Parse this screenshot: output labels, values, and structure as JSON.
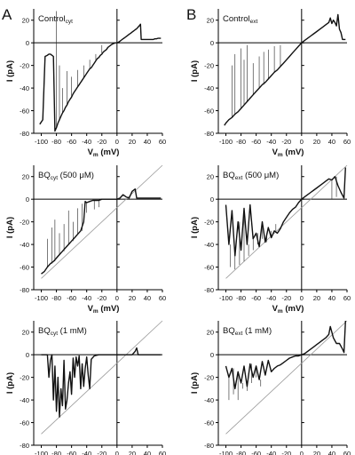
{
  "chart_data": [
    {
      "type": "line",
      "panel": "A",
      "title": "Control",
      "title_sub": "cyt",
      "title_suffix": "",
      "xlabel": "V",
      "xlabel_sub": "m",
      "xlabel_unit": " (mV)",
      "ylabel": "I (pA)",
      "xlim": [
        -110,
        60
      ],
      "ylim": [
        -80,
        30
      ],
      "xticks": [
        -100,
        -80,
        -60,
        -40,
        -20,
        0,
        20,
        40,
        60
      ],
      "yticks": [
        -80,
        -60,
        -40,
        -20,
        0,
        20
      ],
      "series": [
        {
          "x": [
            -102,
            -100,
            -98,
            -95,
            -92,
            -90,
            -88,
            -86,
            -84,
            -82,
            -80,
            -78,
            -76,
            -74,
            -72,
            -70,
            -68,
            -66,
            -64,
            -62,
            -60,
            -58,
            -56,
            -54,
            -52,
            -50,
            -48,
            -46,
            -44,
            -42,
            -40,
            -38,
            -36,
            -34,
            -32,
            -30,
            -28,
            -26,
            -24,
            -22,
            -20,
            -18,
            -16,
            -14,
            -12,
            -10,
            -8,
            -6,
            -4,
            -2,
            0,
            2,
            4,
            6,
            8,
            10,
            12,
            14,
            16,
            18,
            20,
            22,
            24,
            26,
            28,
            30,
            31,
            32,
            34,
            36,
            38,
            40,
            42,
            44,
            46,
            48,
            50,
            52,
            54,
            56,
            58
          ],
          "y": [
            -72,
            -70,
            -68,
            -12,
            -11,
            -10,
            -10,
            -11,
            -12,
            -78,
            -75,
            -71,
            -68,
            -65,
            -62,
            -60,
            -57,
            -55,
            -52,
            -50,
            -48,
            -45,
            -43,
            -41,
            -39,
            -37,
            -35,
            -33,
            -31,
            -29,
            -27,
            -25,
            -23,
            -22,
            -20,
            -18,
            -16,
            -14,
            -13,
            -11,
            -10,
            -8,
            -7,
            -6,
            -4,
            -3,
            -2,
            -1,
            -0.5,
            0,
            0,
            0.5,
            1.5,
            2.5,
            3.5,
            4.5,
            5.5,
            6.5,
            7.5,
            8.5,
            9.5,
            10.5,
            11.5,
            12.5,
            14,
            15.5,
            16.5,
            3,
            3,
            3,
            3,
            3,
            3,
            3,
            3,
            3,
            3.5,
            3.5,
            4,
            4,
            4
          ]
        }
      ],
      "spikes": [
        {
          "x": -80,
          "y": 28
        },
        {
          "x": -76,
          "y": -20
        },
        {
          "x": -72,
          "y": -40
        },
        {
          "x": -66,
          "y": -25
        },
        {
          "x": -60,
          "y": -30
        },
        {
          "x": -52,
          "y": -24
        },
        {
          "x": -44,
          "y": -20
        },
        {
          "x": -36,
          "y": -15
        },
        {
          "x": -28,
          "y": -10
        },
        {
          "x": -20,
          "y": -2
        }
      ]
    },
    {
      "type": "line",
      "panel": "B",
      "title": "Control",
      "title_sub": "ext",
      "title_suffix": "",
      "xlabel": "V",
      "xlabel_sub": "m",
      "xlabel_unit": " (mV)",
      "ylabel": "I (pA)",
      "xlim": [
        -110,
        60
      ],
      "ylim": [
        -80,
        30
      ],
      "xticks": [
        -100,
        -80,
        -60,
        -40,
        -20,
        0,
        20,
        40,
        60
      ],
      "yticks": [
        -80,
        -60,
        -40,
        -20,
        0,
        20
      ],
      "series": [
        {
          "x": [
            -102,
            -100,
            -96,
            -92,
            -88,
            -84,
            -80,
            -76,
            -72,
            -68,
            -64,
            -60,
            -56,
            -52,
            -48,
            -44,
            -40,
            -36,
            -32,
            -28,
            -24,
            -20,
            -16,
            -12,
            -8,
            -4,
            0,
            4,
            8,
            12,
            16,
            20,
            24,
            28,
            32,
            36,
            38,
            40,
            42,
            44,
            46,
            48,
            50,
            52,
            54,
            56,
            58
          ],
          "y": [
            -73,
            -71,
            -68,
            -66,
            -63,
            -61,
            -58,
            -55,
            -52,
            -49,
            -46,
            -43,
            -40,
            -37,
            -35,
            -32,
            -29,
            -26,
            -24,
            -21,
            -18,
            -15,
            -12,
            -9,
            -6,
            -3,
            0,
            2,
            4,
            6,
            8,
            10,
            12,
            14,
            16,
            18,
            22,
            17,
            20,
            18,
            15,
            25,
            12,
            9,
            3,
            3,
            3
          ]
        }
      ],
      "spikes": [
        {
          "x": -92,
          "y": -20
        },
        {
          "x": -88,
          "y": -10
        },
        {
          "x": -80,
          "y": -5
        },
        {
          "x": -76,
          "y": -15
        },
        {
          "x": -72,
          "y": -2
        },
        {
          "x": -64,
          "y": -18
        },
        {
          "x": -56,
          "y": -12
        },
        {
          "x": -50,
          "y": -8
        },
        {
          "x": -44,
          "y": -6
        },
        {
          "x": -36,
          "y": -3
        },
        {
          "x": -28,
          "y": -2
        }
      ]
    },
    {
      "type": "line",
      "panel": "",
      "title": "BQ",
      "title_sub": "cyt",
      "title_suffix": " (500 μM)",
      "xlabel": "V",
      "xlabel_sub": "m",
      "xlabel_unit": " (mV)",
      "ylabel": "I (pA)",
      "xlim": [
        -110,
        60
      ],
      "ylim": [
        -80,
        30
      ],
      "xticks": [
        -100,
        -80,
        -60,
        -40,
        -20,
        0,
        20,
        40,
        60
      ],
      "yticks": [
        -80,
        -60,
        -40,
        -20,
        0,
        20
      ],
      "reference_line": {
        "x": [
          -100,
          60
        ],
        "y": [
          -70,
          30
        ]
      },
      "series": [
        {
          "x": [
            -100,
            -96,
            -92,
            -88,
            -84,
            -80,
            -76,
            -72,
            -68,
            -64,
            -60,
            -56,
            -52,
            -48,
            -44,
            -42,
            -40,
            -36,
            -32,
            -28,
            -24,
            -20,
            -16,
            -12,
            -8,
            -4,
            0,
            4,
            8,
            12,
            16,
            20,
            24,
            26,
            28,
            32,
            36,
            40,
            44,
            48,
            52,
            56,
            58
          ],
          "y": [
            -66,
            -64,
            -60,
            -57,
            -55,
            -52,
            -49,
            -46,
            -43,
            -40,
            -37,
            -34,
            -31,
            -28,
            -20,
            -2,
            -3,
            -2,
            -1,
            -1,
            -1,
            0,
            0,
            0,
            0,
            0,
            0,
            1,
            4,
            2,
            1,
            7,
            9,
            1,
            1,
            1,
            1,
            1,
            1,
            1,
            1,
            1,
            1
          ]
        }
      ],
      "spikes": [
        {
          "x": -92,
          "y": -35
        },
        {
          "x": -86,
          "y": -25
        },
        {
          "x": -82,
          "y": -18
        },
        {
          "x": -76,
          "y": -30
        },
        {
          "x": -70,
          "y": -22
        },
        {
          "x": -64,
          "y": -10
        },
        {
          "x": -58,
          "y": -20
        },
        {
          "x": -52,
          "y": -8
        },
        {
          "x": -46,
          "y": -4
        },
        {
          "x": -40,
          "y": -12
        },
        {
          "x": -30,
          "y": -9
        },
        {
          "x": -24,
          "y": -7
        }
      ]
    },
    {
      "type": "line",
      "panel": "",
      "title": "BQ",
      "title_sub": "ext",
      "title_suffix": " (500 μM)",
      "xlabel": "V",
      "xlabel_sub": "m",
      "xlabel_unit": " (mV)",
      "ylabel": "I (pA)",
      "xlim": [
        -110,
        60
      ],
      "ylim": [
        -80,
        30
      ],
      "xticks": [
        -100,
        -80,
        -60,
        -40,
        -20,
        0,
        20,
        40,
        60
      ],
      "yticks": [
        -80,
        -60,
        -40,
        -20,
        0,
        20
      ],
      "reference_line": {
        "x": [
          -100,
          60
        ],
        "y": [
          -70,
          30
        ]
      },
      "series": [
        {
          "x": [
            -100,
            -96,
            -92,
            -88,
            -84,
            -80,
            -76,
            -72,
            -68,
            -64,
            -60,
            -56,
            -52,
            -48,
            -44,
            -40,
            -36,
            -32,
            -28,
            -24,
            -20,
            -16,
            -12,
            -8,
            -4,
            0,
            4,
            8,
            12,
            16,
            20,
            24,
            28,
            32,
            36,
            40,
            44,
            48,
            52,
            56,
            58
          ],
          "y": [
            -5,
            -40,
            -10,
            -50,
            -20,
            -45,
            -8,
            -40,
            -5,
            -35,
            -30,
            -42,
            -20,
            -38,
            -25,
            -34,
            -28,
            -30,
            -26,
            -20,
            -16,
            -12,
            -9,
            -7,
            -3,
            0,
            2,
            4,
            6,
            8,
            10,
            12,
            14,
            16,
            18,
            17,
            20,
            12,
            6,
            1,
            28
          ]
        }
      ],
      "spikes": [
        {
          "x": -94,
          "y": -60
        },
        {
          "x": -88,
          "y": -62
        },
        {
          "x": -82,
          "y": -58
        },
        {
          "x": -76,
          "y": -55
        },
        {
          "x": -70,
          "y": -50
        },
        {
          "x": -64,
          "y": -45
        },
        {
          "x": -58,
          "y": -40
        },
        {
          "x": -52,
          "y": -35
        },
        {
          "x": -46,
          "y": -30
        },
        {
          "x": -40,
          "y": -28
        },
        {
          "x": -34,
          "y": -22
        },
        {
          "x": 40,
          "y": 0
        },
        {
          "x": 46,
          "y": 2
        }
      ]
    },
    {
      "type": "line",
      "panel": "",
      "title": "BQ",
      "title_sub": "cyt",
      "title_suffix": " (1 mM)",
      "xlabel": "V",
      "xlabel_sub": "m",
      "xlabel_unit": " (mV)",
      "ylabel": "I (pA)",
      "xlim": [
        -110,
        60
      ],
      "ylim": [
        -80,
        30
      ],
      "xticks": [
        -100,
        -80,
        -60,
        -40,
        -20,
        0,
        20,
        40,
        60
      ],
      "yticks": [
        -80,
        -60,
        -40,
        -20,
        0,
        20
      ],
      "reference_line": {
        "x": [
          -100,
          60
        ],
        "y": [
          -70,
          30
        ]
      },
      "series": [
        {
          "x": [
            -100,
            -96,
            -92,
            -90,
            -88,
            -86,
            -84,
            -82,
            -80,
            -78,
            -76,
            -74,
            -72,
            -70,
            -68,
            -66,
            -64,
            -62,
            -60,
            -58,
            -56,
            -54,
            -52,
            -50,
            -48,
            -46,
            -44,
            -42,
            -40,
            -38,
            -36,
            -34,
            -30,
            -24,
            -20,
            -12,
            0,
            10,
            20,
            24,
            26,
            28,
            30,
            40,
            50,
            58
          ],
          "y": [
            0,
            0,
            0,
            -20,
            -5,
            0,
            -40,
            -10,
            -50,
            -20,
            -55,
            -30,
            -45,
            -5,
            -48,
            -40,
            -25,
            -15,
            -35,
            -3,
            -20,
            -2,
            -10,
            -1,
            -30,
            -8,
            -28,
            -12,
            -2,
            -18,
            -30,
            -4,
            -1,
            0,
            0,
            0,
            0,
            0,
            0,
            3,
            6,
            0,
            0,
            0,
            0,
            0
          ]
        }
      ],
      "spikes": []
    },
    {
      "type": "line",
      "panel": "",
      "title": "BQ",
      "title_sub": "ext",
      "title_suffix": " (1 mM)",
      "xlabel": "V",
      "xlabel_sub": "m",
      "xlabel_unit": " (mV)",
      "ylabel": "I (pA)",
      "xlim": [
        -110,
        60
      ],
      "ylim": [
        -80,
        30
      ],
      "xticks": [
        -100,
        -80,
        -60,
        -40,
        -20,
        0,
        20,
        40,
        60
      ],
      "yticks": [
        -80,
        -60,
        -40,
        -20,
        0,
        20
      ],
      "reference_line": {
        "x": [
          -100,
          60
        ],
        "y": [
          -70,
          30
        ]
      },
      "series": [
        {
          "x": [
            -100,
            -96,
            -92,
            -88,
            -84,
            -80,
            -76,
            -72,
            -68,
            -64,
            -60,
            -56,
            -52,
            -48,
            -44,
            -40,
            -36,
            -32,
            -28,
            -24,
            -20,
            -16,
            -12,
            -8,
            -4,
            0,
            4,
            8,
            12,
            16,
            20,
            24,
            28,
            32,
            36,
            38,
            40,
            42,
            46,
            50,
            54,
            56,
            58
          ],
          "y": [
            -10,
            -20,
            -12,
            -30,
            -15,
            -25,
            -10,
            -28,
            -8,
            -20,
            -10,
            -22,
            -6,
            -18,
            -5,
            -15,
            -12,
            -10,
            -9,
            -7,
            -5,
            -3,
            -2,
            -1,
            -1,
            0,
            1,
            3,
            5,
            7,
            9,
            11,
            13,
            15,
            18,
            25,
            20,
            15,
            10,
            10,
            5,
            2,
            30
          ]
        }
      ],
      "spikes": [
        {
          "x": -96,
          "y": -40
        },
        {
          "x": -90,
          "y": -35
        },
        {
          "x": -84,
          "y": -40
        },
        {
          "x": -78,
          "y": -30
        },
        {
          "x": -72,
          "y": -32
        },
        {
          "x": -66,
          "y": -25
        },
        {
          "x": -60,
          "y": -20
        },
        {
          "x": -54,
          "y": -28
        }
      ]
    }
  ],
  "panel_layout_labels": {
    "left": "A",
    "right": "B"
  }
}
